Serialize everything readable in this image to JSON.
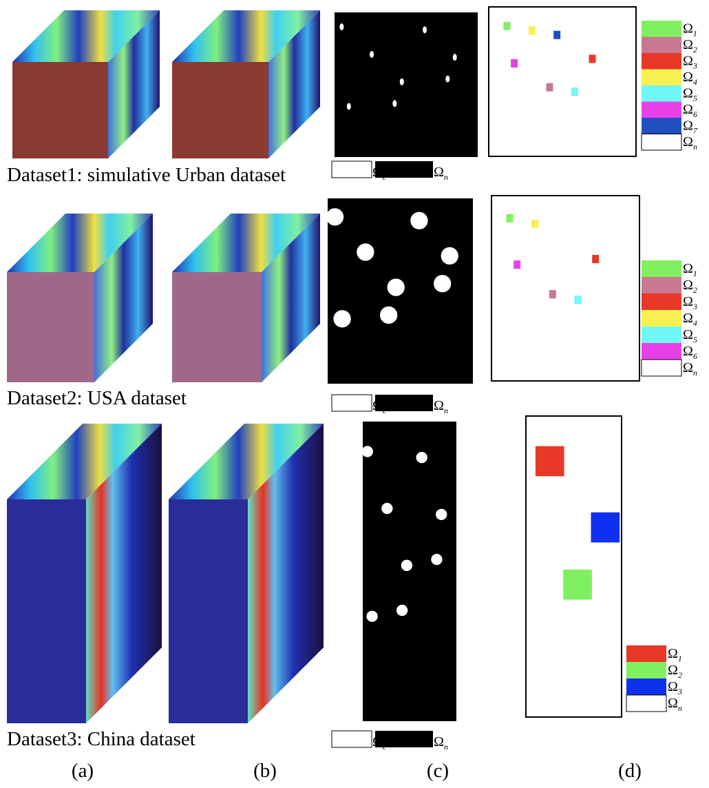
{
  "rows": [
    {
      "caption": "Dataset1: simulative Urban dataset",
      "change_legend": [
        {
          "symbol": "Ω",
          "subscript": "c"
        },
        {
          "symbol": "Ω",
          "subscript": "n"
        }
      ],
      "class_legend": [
        {
          "symbol": "Ω",
          "subscript": "1",
          "color": "#80f060"
        },
        {
          "symbol": "Ω",
          "subscript": "2",
          "color": "#c87890"
        },
        {
          "symbol": "Ω",
          "subscript": "3",
          "color": "#e83828"
        },
        {
          "symbol": "Ω",
          "subscript": "4",
          "color": "#f8f050"
        },
        {
          "symbol": "Ω",
          "subscript": "5",
          "color": "#70f8f8"
        },
        {
          "symbol": "Ω",
          "subscript": "6",
          "color": "#e840e8"
        },
        {
          "symbol": "Ω",
          "subscript": "7",
          "color": "#2050c0"
        },
        {
          "symbol": "Ω",
          "subscript": "n",
          "color": "#ffffff"
        }
      ]
    },
    {
      "caption": "Dataset2: USA dataset",
      "change_legend": [
        {
          "symbol": "Ω",
          "subscript": "c"
        },
        {
          "symbol": "Ω",
          "subscript": "n"
        }
      ],
      "class_legend": [
        {
          "symbol": "Ω",
          "subscript": "1",
          "color": "#80f060"
        },
        {
          "symbol": "Ω",
          "subscript": "2",
          "color": "#c87890"
        },
        {
          "symbol": "Ω",
          "subscript": "3",
          "color": "#e83828"
        },
        {
          "symbol": "Ω",
          "subscript": "4",
          "color": "#f8f050"
        },
        {
          "symbol": "Ω",
          "subscript": "5",
          "color": "#70f8f8"
        },
        {
          "symbol": "Ω",
          "subscript": "6",
          "color": "#e840e8"
        },
        {
          "symbol": "Ω",
          "subscript": "n",
          "color": "#ffffff"
        }
      ]
    },
    {
      "caption": "Dataset3: China dataset",
      "change_legend": [
        {
          "symbol": "Ω",
          "subscript": "c"
        },
        {
          "symbol": "Ω",
          "subscript": "n"
        }
      ],
      "class_legend": [
        {
          "symbol": "Ω",
          "subscript": "1",
          "color": "#e83828"
        },
        {
          "symbol": "Ω",
          "subscript": "2",
          "color": "#80f060"
        },
        {
          "symbol": "Ω",
          "subscript": "3",
          "color": "#1030f0"
        },
        {
          "symbol": "Ω",
          "subscript": "n",
          "color": "#ffffff"
        }
      ]
    }
  ],
  "panel_labels": [
    "(a)",
    "(b)",
    "(c)",
    "(d)"
  ]
}
